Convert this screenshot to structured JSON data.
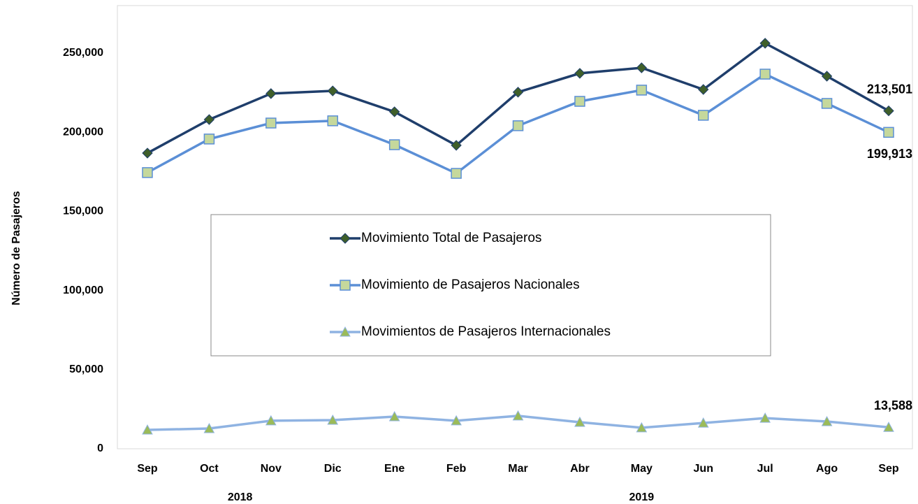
{
  "chart_data": {
    "type": "line",
    "y_label": "Número de Pasajeros",
    "categories": [
      "Sep",
      "Oct",
      "Nov",
      "Dic",
      "Ene",
      "Feb",
      "Mar",
      "Abr",
      "May",
      "Jun",
      "Jul",
      "Ago",
      "Sep"
    ],
    "x_groups": [
      {
        "label": "2018",
        "count": 4
      },
      {
        "label": "2019",
        "count": 9
      }
    ],
    "series": [
      {
        "name": "Movimiento Total de Pasajeros",
        "color": "#1f3e6b",
        "marker": "diamond",
        "marker_color": "#3f5f2a",
        "values": [
          186800,
          208000,
          224400,
          226100,
          212900,
          191700,
          225300,
          237200,
          240700,
          227000,
          256200,
          235400,
          213501
        ],
        "value_labels": [
          null,
          null,
          null,
          null,
          null,
          null,
          null,
          null,
          null,
          null,
          null,
          null,
          "213,501"
        ]
      },
      {
        "name": "Movimiento de Pasajeros Nacionales",
        "color": "#5b8fd6",
        "marker": "square",
        "marker_color": "#c5d89c",
        "values": [
          174500,
          195700,
          205800,
          207200,
          192100,
          174000,
          204100,
          219500,
          226600,
          210700,
          236700,
          218200,
          199913
        ],
        "value_labels": [
          null,
          null,
          null,
          null,
          null,
          null,
          null,
          null,
          null,
          null,
          null,
          null,
          "199,913"
        ]
      },
      {
        "name": "Movimientos de Pasajeros Internacionales",
        "color": "#8fb3e2",
        "marker": "triangle",
        "marker_color": "#9bbb59",
        "values": [
          11900,
          12800,
          17700,
          18100,
          20300,
          17700,
          20800,
          16800,
          13300,
          16300,
          19400,
          17200,
          13588
        ],
        "value_labels": [
          null,
          null,
          null,
          null,
          null,
          null,
          null,
          null,
          null,
          null,
          null,
          null,
          "13,588"
        ]
      }
    ],
    "ylim": [
      0,
      280000
    ],
    "yticks": [
      0,
      {
        "value": 50000,
        "label": "50,000"
      },
      {
        "value": 100000,
        "label": "100,000"
      },
      {
        "value": 150000,
        "label": "150,000"
      },
      {
        "value": 200000,
        "label": "200,000"
      },
      {
        "value": 250000,
        "label": "250,000"
      }
    ],
    "grid": false,
    "legend": "center"
  }
}
